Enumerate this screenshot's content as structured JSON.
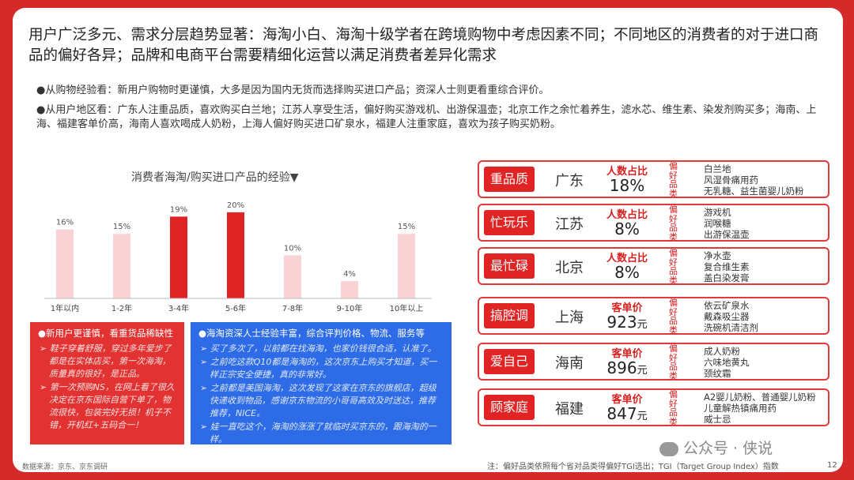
{
  "title": "用户广泛多元、需求分层趋势显著：海淘小白、海淘十级学者在跨境购物中考虑因素不同；不同地区的消费者的对于进口商品的偏好各异；品牌和电商平台需要精细化运营以满足消费者差异化需求",
  "bullets": [
    "●从购物经验看：新用户购物时更谨慎，大多是因为国内无货而选择购买进口产品；资深人士则更看重综合评价。",
    "●从用户地区看：广东人注重品质，喜欢购买白兰地；江苏人享受生活，偏好购买游戏机、出游保温壶；北京工作之余忙着养生，滤水芯、维生素、染发剂购买多；海南、上海、福建客单价高，海南人喜欢喝成人奶粉，上海人偏好购买进口矿泉水，福建人注重家庭，喜欢为孩子购买奶粉。"
  ],
  "chart_title": "消费者海淘/购买进口产品的经验▼",
  "chart_data": {
    "type": "bar",
    "title": "消费者海淘/购买进口产品的经验",
    "categories": [
      "1年以内",
      "1-2年",
      "3-4年",
      "5-6年",
      "7-8年",
      "9-10年",
      "10年以上"
    ],
    "values": [
      16,
      15,
      19,
      20,
      10,
      4,
      15
    ],
    "value_labels": [
      "16%",
      "15%",
      "19%",
      "20%",
      "10%",
      "4%",
      "15%"
    ],
    "highlighted": [
      false,
      false,
      true,
      true,
      false,
      false,
      false
    ],
    "colors": {
      "normal": "#f9d3d3",
      "highlight": "#e02424"
    },
    "ylim": [
      0,
      22
    ]
  },
  "box_red": {
    "head": "●新用户更谨慎，看重货品稀缺性",
    "items": [
      "鞋子穿着舒服，穿过多年爱步了都是在实体店买，第一次海淘，质量真的很好，是正品。",
      "第一次预购NS，在网上看了很久决定在京东国际自营下单了，物流很快，包装完好无损！机子不错，开机红+五码合一！"
    ]
  },
  "box_blue": {
    "head": "●海淘资深人士经验丰富，综合评判价格、物流、服务等",
    "items": [
      "买了多次了，以前都在找海淘，也家价钱很合适，认准了。",
      "之前吃这款Q10都是海淘的，这次京东上购买才知道，买一样正宗安全便捷，真的非常好。",
      "之前都是美国海淘，这次发现了这家在京东的旗舰店，超级快递收到物品，感谢京东物流的小哥哥高效及时送达，推荐推荐，NICE。",
      "娃一直吃这个，海淘的涨涨了就临时买京东的，跟海淘的一样。"
    ]
  },
  "rows": [
    {
      "tag": "重品质",
      "region": "广东",
      "metric_label": "人数占比",
      "value": "18%",
      "unit": "",
      "vlabel": "偏好品类",
      "items": [
        "白兰地",
        "风湿骨痛用药",
        "无乳糖、益生菌婴儿奶粉"
      ]
    },
    {
      "tag": "忙玩乐",
      "region": "江苏",
      "metric_label": "人数占比",
      "value": "8%",
      "unit": "",
      "vlabel": "偏好品类",
      "items": [
        "游戏机",
        "润喉糖",
        "出游保温壶"
      ]
    },
    {
      "tag": "最忙碌",
      "region": "北京",
      "metric_label": "人数占比",
      "value": "8%",
      "unit": "",
      "vlabel": "偏好品类",
      "items": [
        "净水壶",
        "复合维生素",
        "盖白染发膏"
      ]
    },
    {
      "tag": "搞腔调",
      "region": "上海",
      "metric_label": "客单价",
      "value": "923",
      "unit": "元",
      "vlabel": "偏好品类",
      "items": [
        "依云矿泉水",
        "戴森吸尘器",
        "洗碗机清洁剂"
      ]
    },
    {
      "tag": "爱自己",
      "region": "海南",
      "metric_label": "客单价",
      "value": "896",
      "unit": "元",
      "vlabel": "偏好品类",
      "items": [
        "成人奶粉",
        "六味地黄丸",
        "颈纹霜"
      ]
    },
    {
      "tag": "顾家庭",
      "region": "福建",
      "metric_label": "客单价",
      "value": "847",
      "unit": "元",
      "vlabel": "偏好品类",
      "items": [
        "A2婴儿奶粉、普通婴儿奶粉",
        "儿童解热镇痛用药",
        "威士忌"
      ]
    }
  ],
  "source": "数据来源：京东、京东调研",
  "note": "注：偏好品类依照每个省对品类得偏好TGI选出；TGI（Target Group Index）指数",
  "watermark": "公众号 · 侠说",
  "page_number": "12"
}
